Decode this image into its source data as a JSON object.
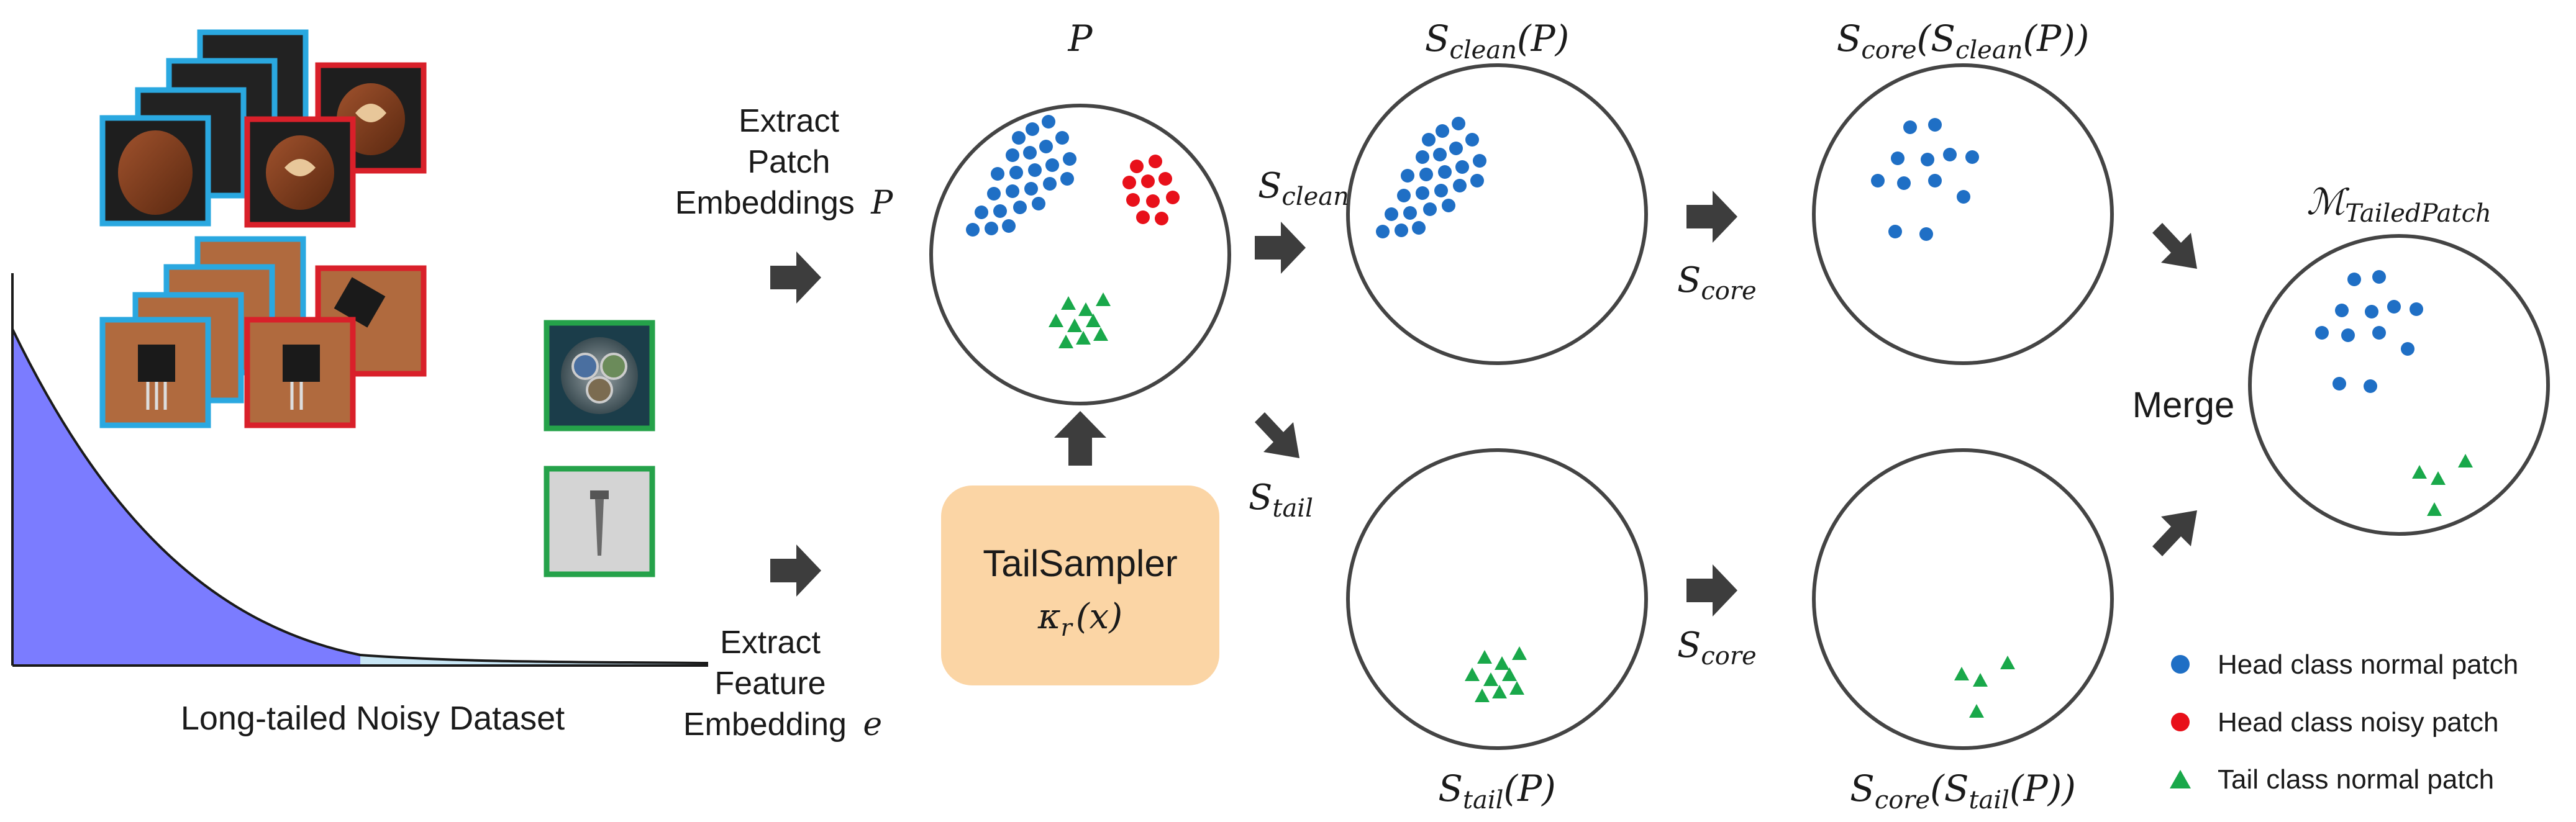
{
  "left_panel": {
    "caption": "Long-tailed Noisy Dataset"
  },
  "extract": {
    "patch_lines": [
      "Extract",
      "Patch",
      "Embeddings"
    ],
    "patch_symbol": "P",
    "feature_lines": [
      "Extract",
      "Feature",
      "Embedding"
    ],
    "feature_symbol": "e"
  },
  "tailsampler": {
    "title": "TailSampler",
    "formula": "κ",
    "formula_sub": "r",
    "formula_arg": "(x)"
  },
  "circles": {
    "p": {
      "label": "P"
    },
    "s_clean": {
      "label_main": "S",
      "label_sub": "clean",
      "label_arg": "(P)"
    },
    "s_core_clean": {
      "label_main": "S",
      "label_sub": "core",
      "label_mid": "(S",
      "label_sub2": "clean",
      "label_arg": "(P))"
    },
    "s_tail": {
      "label_main": "S",
      "label_sub": "tail",
      "label_arg": "(P)"
    },
    "s_core_tail": {
      "label_main": "S",
      "label_sub": "core",
      "label_mid": "(S",
      "label_sub2": "tail",
      "label_arg": "(P))"
    },
    "merged": {
      "label_main": "ℳ",
      "label_sub": "TailedPatch"
    }
  },
  "operators": {
    "s_clean": {
      "main": "S",
      "sub": "clean"
    },
    "s_tail": {
      "main": "S",
      "sub": "tail"
    },
    "s_core_top": {
      "main": "S",
      "sub": "core"
    },
    "s_core_bottom": {
      "main": "S",
      "sub": "core"
    },
    "merge": "Merge"
  },
  "legend": {
    "items": [
      {
        "label": "Head class normal patch",
        "color": "#1f6fc5",
        "shape": "circle"
      },
      {
        "label": "Head class noisy patch",
        "color": "#e8101a",
        "shape": "circle"
      },
      {
        "label": "Tail class normal patch",
        "color": "#19a84a",
        "shape": "triangle"
      }
    ]
  },
  "colors": {
    "head_normal": "#1f6fc5",
    "head_noisy": "#e8101a",
    "tail_normal": "#19a84a",
    "head_frame": "#2aa8e0",
    "noisy_frame": "#d9202a",
    "tail_frame": "#25a24a",
    "curve_head": "#7b7cff",
    "curve_tail": "#c8e6f5",
    "sampler_box": "#fbd5a5",
    "arrow": "#3d3d3d"
  }
}
